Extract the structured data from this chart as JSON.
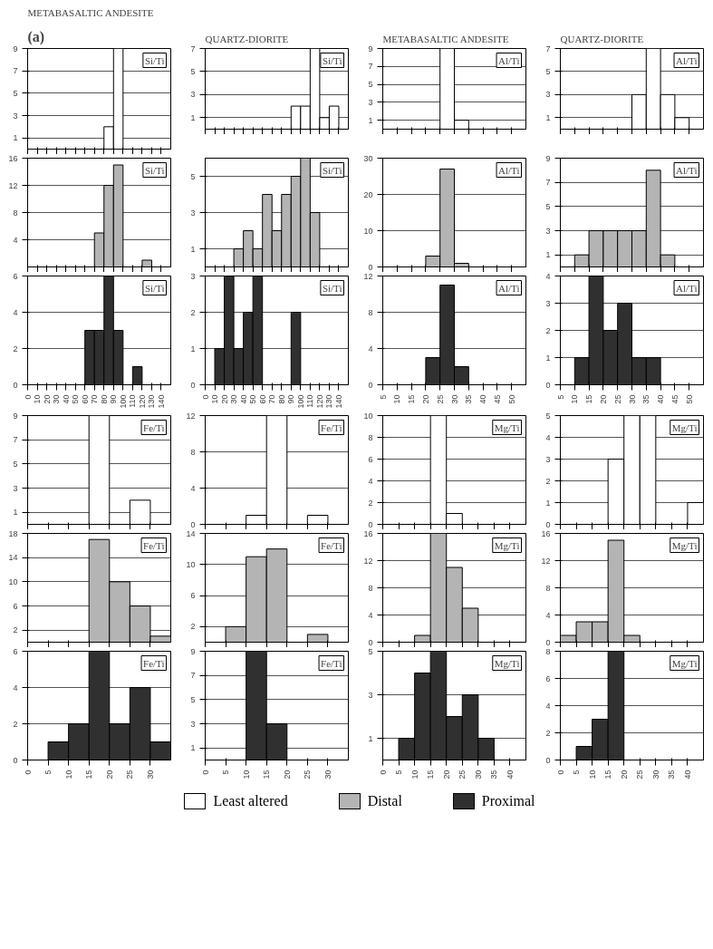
{
  "chart_data": [
    {
      "type": "histogram",
      "subtitle": "(a)",
      "title": "METABASALTIC ANDESITE",
      "annotations": [
        "Si/Ti"
      ],
      "bins": [
        0,
        10,
        20,
        30,
        40,
        50,
        60,
        70,
        80,
        90,
        100,
        110,
        120,
        130,
        140,
        150
      ],
      "xlim": [
        0,
        150
      ],
      "xticks": [
        0,
        10,
        20,
        30,
        40,
        50,
        60,
        70,
        80,
        90,
        100,
        110,
        120,
        130,
        140
      ],
      "ylim": [
        0,
        9
      ],
      "yticks": [
        1,
        3,
        5,
        7,
        9
      ],
      "grid": "y",
      "tick_labels": "y",
      "series": [
        {
          "name": "Least altered",
          "color": "#ffffff",
          "values": [
            null,
            null,
            null,
            null,
            null,
            null,
            null,
            null,
            2,
            9,
            null,
            null,
            null,
            null,
            null
          ]
        }
      ]
    },
    {
      "type": "histogram",
      "title": "QUARTZ-DIORITE",
      "annotations": [
        "Si/Ti"
      ],
      "bins": [
        0,
        10,
        20,
        30,
        40,
        50,
        60,
        70,
        80,
        90,
        100,
        110,
        120,
        130,
        140,
        150
      ],
      "xlim": [
        0,
        150
      ],
      "xticks": [
        0,
        10,
        20,
        30,
        40,
        50,
        60,
        70,
        80,
        90,
        100,
        110,
        120,
        130,
        140
      ],
      "ylim": [
        0,
        7
      ],
      "yticks": [
        1,
        3,
        5,
        7
      ],
      "grid": "y",
      "tick_labels": "y",
      "series": [
        {
          "name": "Least altered",
          "color": "#ffffff",
          "values": [
            null,
            null,
            null,
            null,
            null,
            null,
            null,
            null,
            null,
            2,
            2,
            7,
            1,
            2,
            null
          ]
        }
      ]
    },
    {
      "type": "histogram",
      "title": "METABASALTIC ANDESITE",
      "annotations": [
        "Al/Ti"
      ],
      "bins": [
        5,
        10,
        15,
        20,
        25,
        30,
        35,
        40,
        45,
        50,
        55
      ],
      "xlim": [
        5,
        55
      ],
      "xticks": [
        5,
        10,
        15,
        20,
        25,
        30,
        35,
        40,
        45,
        50
      ],
      "ylim": [
        0,
        9
      ],
      "yticks": [
        1,
        3,
        5,
        7,
        9
      ],
      "grid": "y",
      "tick_labels": "y",
      "series": [
        {
          "name": "Least altered",
          "color": "#ffffff",
          "values": [
            null,
            null,
            null,
            null,
            9,
            1,
            null,
            null,
            null,
            null
          ]
        }
      ]
    },
    {
      "type": "histogram",
      "title": "QUARTZ-DIORITE",
      "annotations": [
        "Al/Ti"
      ],
      "bins": [
        5,
        10,
        15,
        20,
        25,
        30,
        35,
        40,
        45,
        50,
        55
      ],
      "xlim": [
        5,
        55
      ],
      "xticks": [
        5,
        10,
        15,
        20,
        25,
        30,
        35,
        40,
        45,
        50
      ],
      "ylim": [
        0,
        7
      ],
      "yticks": [
        1,
        3,
        5,
        7
      ],
      "grid": "y",
      "tick_labels": "y",
      "series": [
        {
          "name": "Least altered",
          "color": "#ffffff",
          "values": [
            null,
            null,
            null,
            null,
            null,
            3,
            7,
            3,
            1,
            null
          ]
        }
      ]
    },
    {
      "type": "histogram",
      "annotations": [
        "Si/Ti"
      ],
      "bins": [
        0,
        10,
        20,
        30,
        40,
        50,
        60,
        70,
        80,
        90,
        100,
        110,
        120,
        130,
        140,
        150
      ],
      "xlim": [
        0,
        150
      ],
      "xticks": [
        0,
        10,
        20,
        30,
        40,
        50,
        60,
        70,
        80,
        90,
        100,
        110,
        120,
        130,
        140
      ],
      "ylim": [
        0,
        16
      ],
      "yticks": [
        4,
        8,
        12,
        16
      ],
      "grid": "y",
      "tick_labels": "y",
      "series": [
        {
          "name": "Distal",
          "color": "#b4b4b4",
          "values": [
            null,
            null,
            null,
            null,
            null,
            null,
            null,
            5,
            12,
            15,
            null,
            null,
            1,
            null,
            null
          ]
        }
      ]
    },
    {
      "type": "histogram",
      "annotations": [
        "Si/Ti"
      ],
      "bins": [
        0,
        10,
        20,
        30,
        40,
        50,
        60,
        70,
        80,
        90,
        100,
        110,
        120,
        130,
        140,
        150
      ],
      "xlim": [
        0,
        150
      ],
      "xticks": [
        0,
        10,
        20,
        30,
        40,
        50,
        60,
        70,
        80,
        90,
        100,
        110,
        120,
        130,
        140
      ],
      "ylim": [
        0,
        6
      ],
      "yticks": [
        1,
        3,
        5
      ],
      "grid": "y",
      "tick_labels": "y",
      "series": [
        {
          "color": "#b4b4b4",
          "values": [
            null,
            null,
            null,
            1,
            2,
            1,
            4,
            2,
            4,
            5,
            6,
            3,
            null,
            null,
            null
          ]
        }
      ]
    },
    {
      "type": "histogram",
      "annotations": [
        "Al/Ti"
      ],
      "bins": [
        5,
        10,
        15,
        20,
        25,
        30,
        35,
        40,
        45,
        50,
        55
      ],
      "xlim": [
        5,
        55
      ],
      "xticks": [
        5,
        10,
        15,
        20,
        25,
        30,
        35,
        40,
        45,
        50
      ],
      "ylim": [
        0,
        30
      ],
      "yticks": [
        0,
        10,
        20,
        30
      ],
      "grid": "y",
      "tick_labels": "y",
      "series": [
        {
          "color": "#b4b4b4",
          "values": [
            null,
            null,
            null,
            3,
            27,
            1,
            null,
            null,
            null,
            null
          ]
        }
      ]
    },
    {
      "type": "histogram",
      "annotations": [
        "Al/Ti"
      ],
      "bins": [
        5,
        10,
        15,
        20,
        25,
        30,
        35,
        40,
        45,
        50,
        55
      ],
      "xlim": [
        5,
        55
      ],
      "xticks": [
        5,
        10,
        15,
        20,
        25,
        30,
        35,
        40,
        45,
        50
      ],
      "ylim": [
        0,
        9
      ],
      "yticks": [
        1,
        3,
        5,
        7,
        9
      ],
      "grid": "y",
      "tick_labels": "y",
      "series": [
        {
          "color": "#b4b4b4",
          "values": [
            null,
            1,
            3,
            3,
            3,
            3,
            8,
            1,
            null,
            null
          ]
        }
      ]
    },
    {
      "type": "histogram",
      "annotations": [
        "Si/Ti"
      ],
      "bins": [
        0,
        10,
        20,
        30,
        40,
        50,
        60,
        70,
        80,
        90,
        100,
        110,
        120,
        130,
        140,
        150
      ],
      "xlim": [
        0,
        150
      ],
      "xticks": [
        0,
        10,
        20,
        30,
        40,
        50,
        60,
        70,
        80,
        90,
        100,
        110,
        120,
        130,
        140
      ],
      "ylim": [
        0,
        6
      ],
      "yticks": [
        0,
        2,
        4,
        6
      ],
      "grid": "y",
      "series": [
        {
          "name": "Proximal",
          "color": "#303030",
          "values": [
            null,
            null,
            null,
            null,
            null,
            null,
            3,
            3,
            6,
            3,
            null,
            1,
            null,
            null,
            null
          ]
        }
      ]
    },
    {
      "type": "histogram",
      "annotations": [
        "Si/Ti"
      ],
      "bins": [
        0,
        10,
        20,
        30,
        40,
        50,
        60,
        70,
        80,
        90,
        100,
        110,
        120,
        130,
        140,
        150
      ],
      "xlim": [
        0,
        150
      ],
      "xticks": [
        0,
        10,
        20,
        30,
        40,
        50,
        60,
        70,
        80,
        90,
        100,
        110,
        120,
        130,
        140
      ],
      "ylim": [
        0,
        3
      ],
      "yticks": [
        0,
        1,
        2,
        3
      ],
      "grid": "y",
      "series": [
        {
          "name": "Proximal",
          "color": "#303030",
          "values": [
            null,
            1,
            3,
            1,
            2,
            3,
            null,
            null,
            null,
            2,
            null,
            null,
            null,
            null,
            null
          ]
        }
      ]
    },
    {
      "type": "histogram",
      "annotations": [
        "Al/Ti"
      ],
      "bins": [
        5,
        10,
        15,
        20,
        25,
        30,
        35,
        40,
        45,
        50,
        55
      ],
      "xlim": [
        5,
        55
      ],
      "xticks": [
        5,
        10,
        15,
        20,
        25,
        30,
        35,
        40,
        45,
        50
      ],
      "ylim": [
        0,
        12
      ],
      "yticks": [
        0,
        4,
        8,
        12
      ],
      "grid": "y",
      "series": [
        {
          "name": "Proximal",
          "color": "#303030",
          "values": [
            null,
            null,
            null,
            3,
            11,
            2,
            null,
            null,
            null,
            null
          ]
        }
      ]
    },
    {
      "type": "histogram",
      "annotations": [
        "Al/Ti"
      ],
      "bins": [
        5,
        10,
        15,
        20,
        25,
        30,
        35,
        40,
        45,
        50,
        55
      ],
      "xlim": [
        5,
        55
      ],
      "xticks": [
        5,
        10,
        15,
        20,
        25,
        30,
        35,
        40,
        45,
        50
      ],
      "ylim": [
        0,
        4
      ],
      "yticks": [
        0,
        1,
        2,
        3,
        4
      ],
      "grid": "y",
      "series": [
        {
          "name": "Proximal",
          "color": "#303030",
          "values": [
            null,
            1,
            4,
            2,
            3,
            1,
            1,
            null,
            null,
            null
          ]
        }
      ]
    },
    {
      "type": "histogram",
      "annotations": [
        "Fe/Ti"
      ],
      "bins": [
        0,
        5,
        10,
        15,
        20,
        25,
        30,
        35
      ],
      "xlim": [
        0,
        35
      ],
      "xticks": [
        0,
        5,
        10,
        15,
        20,
        25,
        30
      ],
      "ylim": [
        0,
        9
      ],
      "yticks": [
        1,
        3,
        5,
        7,
        9
      ],
      "grid": "y",
      "tick_labels": "y",
      "series": [
        {
          "name": "Least altered",
          "color": "#ffffff",
          "values": [
            null,
            null,
            null,
            9,
            null,
            2,
            null
          ]
        }
      ]
    },
    {
      "type": "histogram",
      "annotations": [
        "Fe/Ti"
      ],
      "bins": [
        0,
        5,
        10,
        15,
        20,
        25,
        30,
        35
      ],
      "xlim": [
        0,
        35
      ],
      "xticks": [
        0,
        5,
        10,
        15,
        20,
        25,
        30
      ],
      "ylim": [
        0,
        12
      ],
      "yticks": [
        0,
        4,
        8,
        12
      ],
      "grid": "y",
      "tick_labels": "y",
      "series": [
        {
          "name": "Least altered",
          "color": "#ffffff",
          "values": [
            null,
            null,
            1,
            12,
            null,
            1,
            null
          ]
        }
      ]
    },
    {
      "type": "histogram",
      "annotations": [
        "Mg/Ti"
      ],
      "bins": [
        0,
        5,
        10,
        15,
        20,
        25,
        30,
        35,
        40,
        45
      ],
      "xlim": [
        0,
        45
      ],
      "xticks": [
        0,
        5,
        10,
        15,
        20,
        25,
        30,
        35,
        40
      ],
      "ylim": [
        0,
        10
      ],
      "yticks": [
        0,
        2,
        4,
        6,
        8,
        10
      ],
      "grid": "y",
      "tick_labels": "y",
      "series": [
        {
          "name": "Least altered",
          "color": "#ffffff",
          "values": [
            null,
            null,
            null,
            10,
            1,
            null,
            null,
            null,
            null
          ]
        }
      ]
    },
    {
      "type": "histogram",
      "annotations": [
        "Mg/Ti"
      ],
      "bins": [
        0,
        5,
        10,
        15,
        20,
        25,
        30,
        35,
        40,
        45
      ],
      "xlim": [
        0,
        45
      ],
      "xticks": [
        0,
        5,
        10,
        15,
        20,
        25,
        30,
        35,
        40
      ],
      "ylim": [
        0,
        5
      ],
      "yticks": [
        0,
        1,
        2,
        3,
        4,
        5
      ],
      "grid": "y",
      "tick_labels": "y",
      "series": [
        {
          "name": "Least altered",
          "color": "#ffffff",
          "values": [
            null,
            null,
            null,
            3,
            5,
            5,
            null,
            null,
            1
          ]
        }
      ]
    },
    {
      "type": "histogram",
      "annotations": [
        "Fe/Ti"
      ],
      "bins": [
        0,
        5,
        10,
        15,
        20,
        25,
        30,
        35
      ],
      "xlim": [
        0,
        35
      ],
      "xticks": [
        0,
        5,
        10,
        15,
        20,
        25,
        30
      ],
      "ylim": [
        0,
        18
      ],
      "yticks": [
        2,
        6,
        10,
        14,
        18
      ],
      "grid": "y",
      "tick_labels": "y",
      "series": [
        {
          "color": "#b4b4b4",
          "values": [
            null,
            null,
            null,
            17,
            10,
            6,
            1
          ]
        }
      ]
    },
    {
      "type": "histogram",
      "annotations": [
        "Fe/Ti"
      ],
      "bins": [
        0,
        5,
        10,
        15,
        20,
        25,
        30,
        35
      ],
      "xlim": [
        0,
        35
      ],
      "xticks": [
        0,
        5,
        10,
        15,
        20,
        25,
        30
      ],
      "ylim": [
        0,
        14
      ],
      "yticks": [
        2,
        6,
        10,
        14
      ],
      "grid": "y",
      "tick_labels": "y",
      "series": [
        {
          "color": "#b4b4b4",
          "values": [
            null,
            2,
            11,
            12,
            null,
            1,
            null
          ]
        }
      ]
    },
    {
      "type": "histogram",
      "annotations": [
        "Mg/Ti"
      ],
      "bins": [
        0,
        5,
        10,
        15,
        20,
        25,
        30,
        35,
        40,
        45
      ],
      "xlim": [
        0,
        45
      ],
      "xticks": [
        0,
        5,
        10,
        15,
        20,
        25,
        30,
        35,
        40
      ],
      "ylim": [
        0,
        16
      ],
      "yticks": [
        0,
        4,
        8,
        12,
        16
      ],
      "grid": "y",
      "tick_labels": "y",
      "series": [
        {
          "color": "#b4b4b4",
          "values": [
            null,
            null,
            1,
            16,
            11,
            5,
            null,
            null,
            null
          ]
        }
      ]
    },
    {
      "type": "histogram",
      "annotations": [
        "Mg/Ti"
      ],
      "bins": [
        0,
        5,
        10,
        15,
        20,
        25,
        30,
        35,
        40,
        45
      ],
      "xlim": [
        0,
        45
      ],
      "xticks": [
        0,
        5,
        10,
        15,
        20,
        25,
        30,
        35,
        40
      ],
      "ylim": [
        0,
        16
      ],
      "yticks": [
        0,
        4,
        8,
        12,
        16
      ],
      "grid": "y",
      "tick_labels": "y",
      "series": [
        {
          "color": "#b4b4b4",
          "values": [
            1,
            3,
            3,
            15,
            1,
            null,
            null,
            null,
            null
          ]
        }
      ]
    },
    {
      "type": "histogram",
      "annotations": [
        "Fe/Ti"
      ],
      "bins": [
        0,
        5,
        10,
        15,
        20,
        25,
        30,
        35
      ],
      "xlim": [
        0,
        35
      ],
      "xticks": [
        0,
        5,
        10,
        15,
        20,
        25,
        30
      ],
      "ylim": [
        0,
        6
      ],
      "yticks": [
        0,
        2,
        4,
        6
      ],
      "grid": "y",
      "series": [
        {
          "name": "Proximal",
          "color": "#303030",
          "values": [
            null,
            1,
            2,
            6,
            2,
            4,
            1
          ]
        }
      ]
    },
    {
      "type": "histogram",
      "annotations": [
        "Fe/Ti"
      ],
      "bins": [
        0,
        5,
        10,
        15,
        20,
        25,
        30,
        35
      ],
      "xlim": [
        0,
        35
      ],
      "xticks": [
        0,
        5,
        10,
        15,
        20,
        25,
        30
      ],
      "ylim": [
        0,
        9
      ],
      "yticks": [
        1,
        3,
        5,
        7,
        9
      ],
      "grid": "y",
      "series": [
        {
          "name": "Proximal",
          "color": "#303030",
          "values": [
            null,
            null,
            9,
            3,
            null,
            null,
            null
          ]
        }
      ]
    },
    {
      "type": "histogram",
      "annotations": [
        "Mg/Ti"
      ],
      "bins": [
        0,
        5,
        10,
        15,
        20,
        25,
        30,
        35,
        40,
        45
      ],
      "xlim": [
        0,
        45
      ],
      "xticks": [
        0,
        5,
        10,
        15,
        20,
        25,
        30,
        35,
        40
      ],
      "ylim": [
        0,
        5
      ],
      "yticks": [
        1,
        3,
        5
      ],
      "grid": "y",
      "series": [
        {
          "name": "Proximal",
          "color": "#303030",
          "values": [
            null,
            1,
            4,
            5,
            2,
            3,
            1,
            null,
            null
          ]
        }
      ]
    },
    {
      "type": "histogram",
      "annotations": [
        "Mg/Ti"
      ],
      "bins": [
        0,
        5,
        10,
        15,
        20,
        25,
        30,
        35,
        40,
        45
      ],
      "xlim": [
        0,
        45
      ],
      "xticks": [
        0,
        5,
        10,
        15,
        20,
        25,
        30,
        35,
        40
      ],
      "ylim": [
        0,
        8
      ],
      "yticks": [
        0,
        2,
        4,
        6,
        8
      ],
      "grid": "y",
      "series": [
        {
          "name": "Proximal",
          "color": "#303030",
          "values": [
            null,
            1,
            3,
            8,
            null,
            null,
            null,
            null,
            null
          ]
        }
      ]
    }
  ]
}
